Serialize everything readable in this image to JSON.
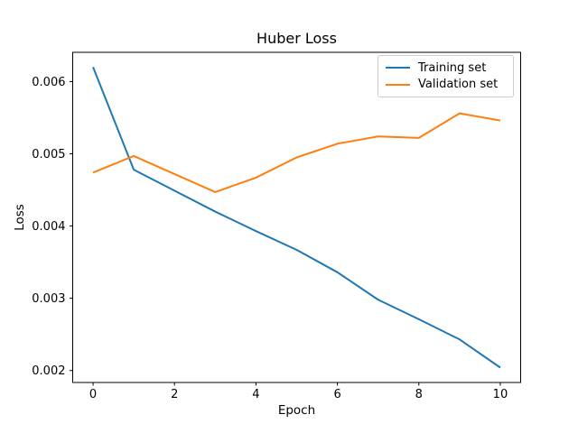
{
  "figure": {
    "background": "#ffffff"
  },
  "chart_data": {
    "type": "line",
    "title": "Huber Loss",
    "xlabel": "Epoch",
    "ylabel": "Loss",
    "x": [
      0,
      1,
      2,
      3,
      4,
      5,
      6,
      7,
      8,
      9,
      10
    ],
    "series": [
      {
        "name": "Training set",
        "color": "#1f77b4",
        "values": [
          0.0062,
          0.00478,
          0.00449,
          0.0042,
          0.00393,
          0.00367,
          0.00336,
          0.00298,
          0.00271,
          0.00243,
          0.00204
        ]
      },
      {
        "name": "Validation set",
        "color": "#ff7f0e",
        "values": [
          0.00474,
          0.00497,
          0.00472,
          0.00447,
          0.00467,
          0.00495,
          0.00514,
          0.00524,
          0.00522,
          0.00556,
          0.00546
        ]
      }
    ],
    "xlim": [
      -0.5,
      10.5
    ],
    "ylim": [
      0.001834,
      0.006405
    ],
    "xticks": [
      0,
      2,
      4,
      6,
      8,
      10
    ],
    "xtick_labels": [
      "0",
      "2",
      "4",
      "6",
      "8",
      "10"
    ],
    "yticks": [
      0.002,
      0.003,
      0.004,
      0.005,
      0.006
    ],
    "ytick_labels": [
      "0.002",
      "0.003",
      "0.004",
      "0.005",
      "0.006"
    ],
    "grid": false,
    "legend": {
      "position": "upper right",
      "entries": [
        "Training set",
        "Validation set"
      ]
    }
  },
  "colors": {
    "axis": "#000000",
    "text": "#000000",
    "legend_border": "#cccccc",
    "background": "#ffffff"
  }
}
